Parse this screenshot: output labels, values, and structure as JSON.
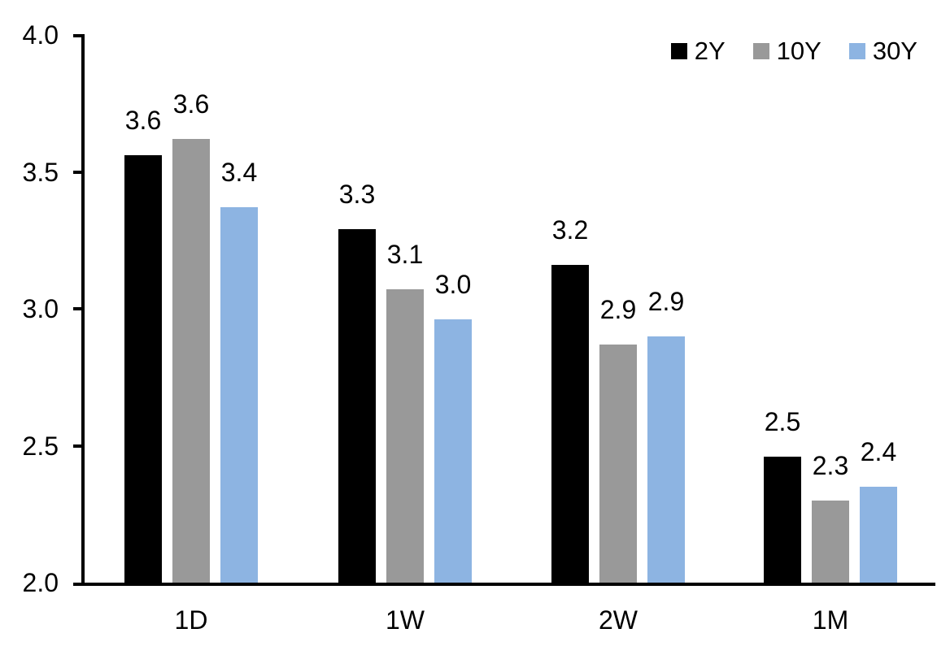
{
  "chart_data": {
    "type": "bar",
    "title": "",
    "xlabel": "",
    "ylabel": "",
    "categories": [
      "1D",
      "1W",
      "2W",
      "1M"
    ],
    "series": [
      {
        "name": "2Y",
        "color": "#000000",
        "values": [
          3.56,
          3.29,
          3.16,
          2.46
        ],
        "labels": [
          "3.6",
          "3.3",
          "3.2",
          "2.5"
        ]
      },
      {
        "name": "10Y",
        "color": "#999999",
        "values": [
          3.62,
          3.07,
          2.87,
          2.3
        ],
        "labels": [
          "3.6",
          "3.1",
          "2.9",
          "2.3"
        ]
      },
      {
        "name": "30Y",
        "color": "#8DB4E2",
        "values": [
          3.37,
          2.96,
          2.9,
          2.35
        ],
        "labels": [
          "3.4",
          "3.0",
          "2.9",
          "2.4"
        ]
      }
    ],
    "y_axis": {
      "min": 2.0,
      "max": 4.0,
      "step": 0.5,
      "tick_labels": [
        "4.0",
        "3.5",
        "3.0",
        "2.5",
        "2.0"
      ]
    },
    "legend": {
      "position": "top-right",
      "entries": [
        "2Y",
        "10Y",
        "30Y"
      ]
    },
    "grid": false
  }
}
